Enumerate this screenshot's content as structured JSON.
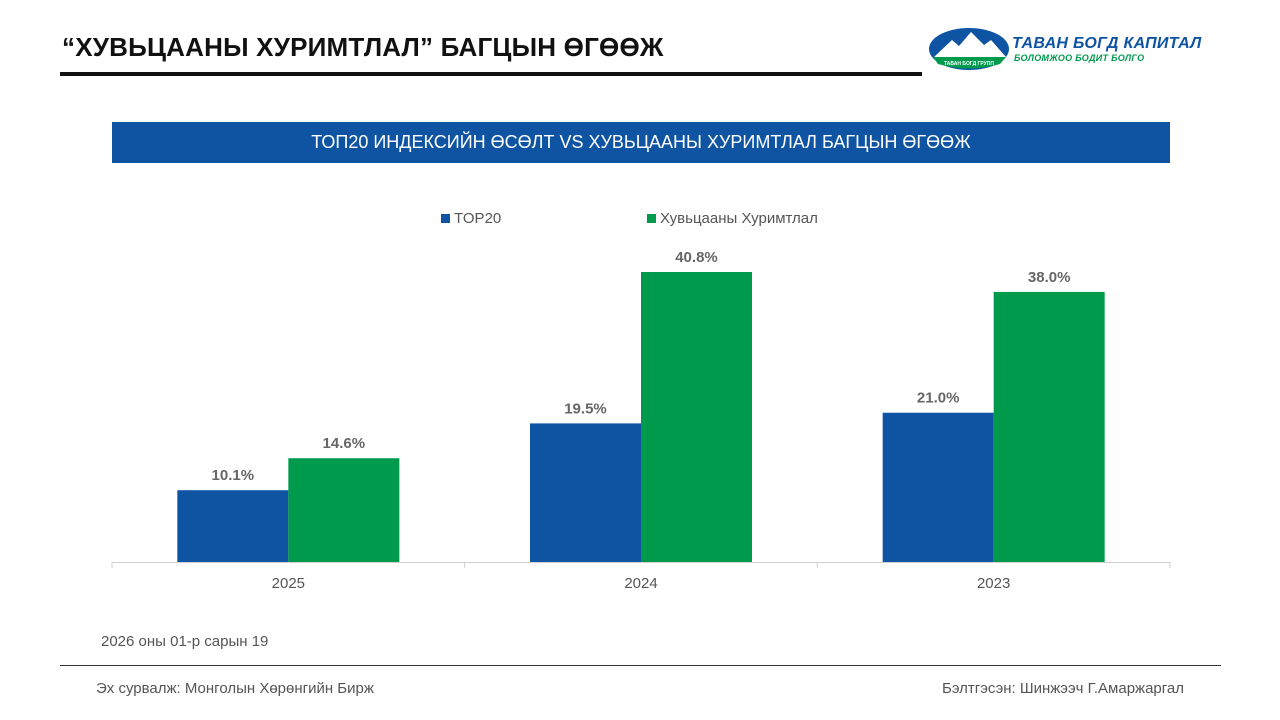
{
  "header": {
    "title": "“ХУВЬЦААНЫ ХУРИМТЛАЛ” БАГЦЫН ӨГӨӨЖ"
  },
  "logo": {
    "name": "ТАВАН БОГД КАПИТАЛ",
    "tagline": "БОЛОМЖОО БОДИТ БОЛГО",
    "badge": "ТАВАН БОГД ГРУПП"
  },
  "colors": {
    "primary_blue": "#0e54a3",
    "accent_green": "#009a4d"
  },
  "chart_data": {
    "type": "bar",
    "title": "ТОП20 ИНДЕКСИЙН ӨСӨЛТ VS ХУВЬЦААНЫ ХУРИМТЛАЛ БАГЦЫН ӨГӨӨЖ",
    "categories": [
      "2025",
      "2024",
      "2023"
    ],
    "series": [
      {
        "name": "TOP20",
        "color": "#0e54a3",
        "values": [
          10.1,
          19.5,
          21.0
        ],
        "labels": [
          "10.1%",
          "19.5%",
          "21.0%"
        ]
      },
      {
        "name": "Хувьцааны Хуримтлал",
        "color": "#009a4d",
        "values": [
          14.6,
          40.8,
          38.0
        ],
        "labels": [
          "14.6%",
          "40.8%",
          "38.0%"
        ]
      }
    ],
    "xlabel": "",
    "ylabel": "",
    "ylim": [
      0,
      45
    ],
    "legend": "top-center",
    "grid": false
  },
  "footer": {
    "date": "2026 оны 01-р сарын 19",
    "source": "Эх сурвалж: Монголын Хөрөнгийн Бирж",
    "author": "Бэлтгэсэн: Шинжээч Г.Амаржаргал"
  }
}
